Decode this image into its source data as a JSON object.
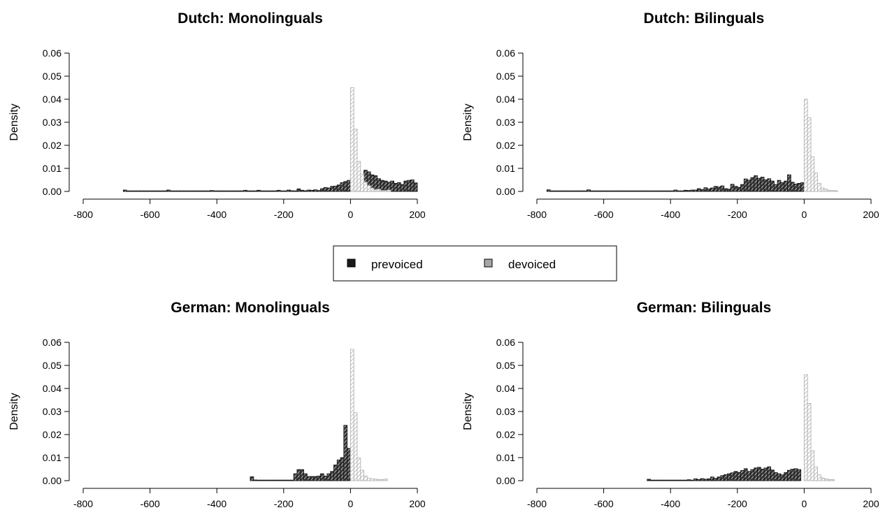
{
  "legend": {
    "items": [
      {
        "label": "prevoiced",
        "color": "#1a1a1a"
      },
      {
        "label": "devoiced",
        "color": "#a6a6a6"
      }
    ]
  },
  "colors": {
    "prevoiced_fill": "#1a1a1a",
    "devoiced_fill": "#a6a6a6",
    "devoiced_stroke": "#b3b3b3"
  },
  "chart_data": [
    {
      "type": "bar",
      "title": "Dutch: Monolinguals",
      "ylabel": "Density",
      "xlim": [
        -800,
        200
      ],
      "ylim": [
        0,
        0.06
      ],
      "xticks": [
        "-800",
        "-600",
        "-400",
        "-200",
        "0",
        "200"
      ],
      "yticks": [
        "0.00",
        "0.01",
        "0.02",
        "0.03",
        "0.04",
        "0.05",
        "0.06"
      ],
      "bin_width": 10,
      "series": [
        {
          "name": "prevoiced",
          "x_start": -680,
          "values": [
            0.0006,
            0.0002,
            0.0002,
            0.0002,
            0.0002,
            0.0002,
            0.0002,
            0.0002,
            0.0002,
            0.0002,
            0.0002,
            0.0002,
            0.0002,
            0.0006,
            0.0002,
            0.0002,
            0.0002,
            0.0002,
            0.0002,
            0.0002,
            0.0002,
            0.0002,
            0.0002,
            0.0002,
            0.0002,
            0.0002,
            0.0004,
            0.0002,
            0.0002,
            0.0002,
            0.0002,
            0.0002,
            0.0002,
            0.0002,
            0.0002,
            0.0002,
            0.0005,
            0.0002,
            0.0002,
            0.0002,
            0.0005,
            0.0002,
            0.0002,
            0.0002,
            0.0002,
            0.0002,
            0.0005,
            0.0002,
            0.0002,
            0.0006,
            0.0003,
            0.0002,
            0.0011,
            0.0005,
            0.0003,
            0.0006,
            0.0005,
            0.0007,
            0.0004,
            0.0012,
            0.0017,
            0.0015,
            0.0022,
            0.0023,
            0.0028,
            0.0038,
            0.0043,
            0.0048,
            0.0057,
            0.0052,
            0.0055,
            0.0058,
            0.0092,
            0.0085,
            0.0072,
            0.0068,
            0.0055,
            0.0048,
            0.0045,
            0.004,
            0.0045,
            0.0035,
            0.0038,
            0.003,
            0.0045,
            0.0048,
            0.005,
            0.0037
          ]
        },
        {
          "name": "devoiced",
          "x_start": 0,
          "values": [
            0.045,
            0.027,
            0.013,
            0.0075,
            0.004,
            0.0025,
            0.0015,
            0.0008,
            0.001,
            0.0004,
            0.0004,
            0.0006
          ]
        }
      ]
    },
    {
      "type": "bar",
      "title": "Dutch: Bilinguals",
      "ylabel": "Density",
      "xlim": [
        -800,
        200
      ],
      "ylim": [
        0,
        0.06
      ],
      "xticks": [
        "-800",
        "-600",
        "-400",
        "-200",
        "0",
        "200"
      ],
      "yticks": [
        "0.00",
        "0.01",
        "0.02",
        "0.03",
        "0.04",
        "0.05",
        "0.06"
      ],
      "bin_width": 10,
      "series": [
        {
          "name": "prevoiced",
          "x_start": -770,
          "values": [
            0.0007,
            0.0002,
            0.0002,
            0.0002,
            0.0002,
            0.0002,
            0.0002,
            0.0002,
            0.0002,
            0.0002,
            0.0002,
            0.0002,
            0.0007,
            0.0002,
            0.0002,
            0.0002,
            0.0002,
            0.0002,
            0.0002,
            0.0002,
            0.0002,
            0.0002,
            0.0002,
            0.0002,
            0.0002,
            0.0002,
            0.0002,
            0.0002,
            0.0002,
            0.0002,
            0.0002,
            0.0002,
            0.0002,
            0.0002,
            0.0002,
            0.0002,
            0.0002,
            0.0002,
            0.0006,
            0.0002,
            0.0002,
            0.0005,
            0.0004,
            0.0006,
            0.0006,
            0.0012,
            0.0008,
            0.0016,
            0.0011,
            0.0015,
            0.0022,
            0.0019,
            0.0024,
            0.0012,
            0.001,
            0.0031,
            0.0022,
            0.0018,
            0.003,
            0.0054,
            0.0049,
            0.006,
            0.0068,
            0.0057,
            0.0062,
            0.005,
            0.0055,
            0.0045,
            0.003,
            0.0048,
            0.0038,
            0.0045,
            0.0072,
            0.004,
            0.0032,
            0.0035,
            0.0038
          ]
        },
        {
          "name": "devoiced",
          "x_start": 0,
          "values": [
            0.04,
            0.032,
            0.015,
            0.008,
            0.0035,
            0.0015,
            0.001,
            0.0004,
            0.0004,
            0.0003
          ]
        }
      ]
    },
    {
      "type": "bar",
      "title": "German: Monolinguals",
      "ylabel": "Density",
      "xlim": [
        -800,
        200
      ],
      "ylim": [
        0,
        0.06
      ],
      "xticks": [
        "-800",
        "-600",
        "-400",
        "-200",
        "0",
        "200"
      ],
      "yticks": [
        "0.00",
        "0.01",
        "0.02",
        "0.03",
        "0.04",
        "0.05",
        "0.06"
      ],
      "bin_width": 10,
      "series": [
        {
          "name": "prevoiced",
          "x_start": -300,
          "values": [
            0.0017,
            0.0003,
            0.0002,
            0.0002,
            0.0002,
            0.0002,
            0.0002,
            0.0002,
            0.0002,
            0.0002,
            0.0002,
            0.0002,
            0.0002,
            0.003,
            0.0048,
            0.0048,
            0.003,
            0.0018,
            0.0018,
            0.0018,
            0.002,
            0.003,
            0.002,
            0.003,
            0.004,
            0.0068,
            0.009,
            0.01,
            0.024,
            0.014
          ]
        },
        {
          "name": "devoiced",
          "x_start": 0,
          "values": [
            0.057,
            0.0295,
            0.0098,
            0.0045,
            0.002,
            0.001,
            0.0008,
            0.0007,
            0.0005,
            0.0005,
            0.0007
          ]
        }
      ]
    },
    {
      "type": "bar",
      "title": "German: Bilinguals",
      "ylabel": "Density",
      "xlim": [
        -800,
        200
      ],
      "ylim": [
        0,
        0.06
      ],
      "xticks": [
        "-800",
        "-600",
        "-400",
        "-200",
        "0",
        "200"
      ],
      "yticks": [
        "0.00",
        "0.01",
        "0.02",
        "0.03",
        "0.04",
        "0.05",
        "0.06"
      ],
      "bin_width": 10,
      "series": [
        {
          "name": "prevoiced",
          "x_start": -470,
          "values": [
            0.0006,
            0.0002,
            0.0002,
            0.0002,
            0.0002,
            0.0002,
            0.0002,
            0.0002,
            0.0002,
            0.0002,
            0.0002,
            0.0002,
            0.0004,
            0.0002,
            0.0008,
            0.0005,
            0.0009,
            0.0006,
            0.0008,
            0.0016,
            0.001,
            0.0016,
            0.0022,
            0.0026,
            0.003,
            0.0034,
            0.004,
            0.0036,
            0.0044,
            0.0052,
            0.004,
            0.0048,
            0.0055,
            0.0058,
            0.005,
            0.0055,
            0.006,
            0.0046,
            0.0035,
            0.003,
            0.0025,
            0.0035,
            0.0045,
            0.005,
            0.0052,
            0.0048
          ]
        },
        {
          "name": "devoiced",
          "x_start": 0,
          "values": [
            0.046,
            0.0335,
            0.013,
            0.006,
            0.0025,
            0.0012,
            0.0008,
            0.0005,
            0.0005
          ]
        }
      ]
    }
  ]
}
